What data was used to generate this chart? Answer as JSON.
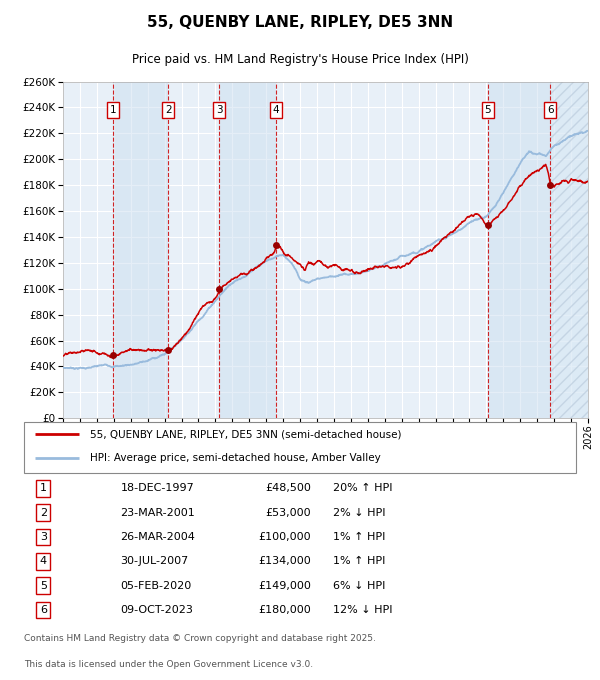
{
  "title": "55, QUENBY LANE, RIPLEY, DE5 3NN",
  "subtitle": "Price paid vs. HM Land Registry's House Price Index (HPI)",
  "legend_line1": "55, QUENBY LANE, RIPLEY, DE5 3NN (semi-detached house)",
  "legend_line2": "HPI: Average price, semi-detached house, Amber Valley",
  "footer1": "Contains HM Land Registry data © Crown copyright and database right 2025.",
  "footer2": "This data is licensed under the Open Government Licence v3.0.",
  "sale_color": "#cc0000",
  "hpi_color": "#99bbdd",
  "plot_bg": "#e8f0f8",
  "grid_color": "#ffffff",
  "vline_color": "#cc0000",
  "ylim": [
    0,
    260000
  ],
  "yticks": [
    0,
    20000,
    40000,
    60000,
    80000,
    100000,
    120000,
    140000,
    160000,
    180000,
    200000,
    220000,
    240000,
    260000
  ],
  "sales": [
    {
      "num": 1,
      "date": "18-DEC-1997",
      "price": 48500,
      "pct": "20%",
      "dir": "↑",
      "x_year": 1997.96
    },
    {
      "num": 2,
      "date": "23-MAR-2001",
      "price": 53000,
      "pct": "2%",
      "dir": "↓",
      "x_year": 2001.22
    },
    {
      "num": 3,
      "date": "26-MAR-2004",
      "price": 100000,
      "pct": "1%",
      "dir": "↑",
      "x_year": 2004.23
    },
    {
      "num": 4,
      "date": "30-JUL-2007",
      "price": 134000,
      "pct": "1%",
      "dir": "↑",
      "x_year": 2007.58
    },
    {
      "num": 5,
      "date": "05-FEB-2020",
      "price": 149000,
      "pct": "6%",
      "dir": "↓",
      "x_year": 2020.09
    },
    {
      "num": 6,
      "date": "09-OCT-2023",
      "price": 180000,
      "pct": "12%",
      "dir": "↓",
      "x_year": 2023.77
    }
  ],
  "xmin": 1995.0,
  "xmax": 2026.0,
  "hpi_keypoints": [
    [
      1995.0,
      39000
    ],
    [
      1997.0,
      40000
    ],
    [
      1998.5,
      41000
    ],
    [
      2000.0,
      45000
    ],
    [
      2001.0,
      50000
    ],
    [
      2002.0,
      62000
    ],
    [
      2003.0,
      78000
    ],
    [
      2004.0,
      95000
    ],
    [
      2005.0,
      110000
    ],
    [
      2006.0,
      118000
    ],
    [
      2007.0,
      125000
    ],
    [
      2007.6,
      128000
    ],
    [
      2008.0,
      130000
    ],
    [
      2008.5,
      125000
    ],
    [
      2009.0,
      112000
    ],
    [
      2009.5,
      110000
    ],
    [
      2010.0,
      113000
    ],
    [
      2011.0,
      116000
    ],
    [
      2012.0,
      117000
    ],
    [
      2013.0,
      119000
    ],
    [
      2014.0,
      121000
    ],
    [
      2015.0,
      126000
    ],
    [
      2016.0,
      132000
    ],
    [
      2017.0,
      138000
    ],
    [
      2018.0,
      145000
    ],
    [
      2019.0,
      152000
    ],
    [
      2020.0,
      157000
    ],
    [
      2020.5,
      165000
    ],
    [
      2021.0,
      175000
    ],
    [
      2021.5,
      188000
    ],
    [
      2022.0,
      200000
    ],
    [
      2022.5,
      207000
    ],
    [
      2023.0,
      205000
    ],
    [
      2023.5,
      202000
    ],
    [
      2024.0,
      210000
    ],
    [
      2024.5,
      215000
    ],
    [
      2025.0,
      220000
    ],
    [
      2026.0,
      222000
    ]
  ],
  "prop_keypoints": [
    [
      1995.0,
      48000
    ],
    [
      1996.0,
      48500
    ],
    [
      1996.5,
      50000
    ],
    [
      1997.0,
      49000
    ],
    [
      1997.5,
      50000
    ],
    [
      1997.96,
      48500
    ],
    [
      1998.5,
      53000
    ],
    [
      1999.0,
      55000
    ],
    [
      1999.5,
      57000
    ],
    [
      2000.0,
      58000
    ],
    [
      2000.5,
      57000
    ],
    [
      2001.22,
      53000
    ],
    [
      2001.5,
      55000
    ],
    [
      2002.0,
      62000
    ],
    [
      2002.5,
      72000
    ],
    [
      2003.0,
      82000
    ],
    [
      2003.5,
      90000
    ],
    [
      2004.0,
      95000
    ],
    [
      2004.23,
      100000
    ],
    [
      2004.5,
      105000
    ],
    [
      2005.0,
      113000
    ],
    [
      2005.5,
      118000
    ],
    [
      2006.0,
      120000
    ],
    [
      2006.5,
      123000
    ],
    [
      2007.0,
      128000
    ],
    [
      2007.58,
      134000
    ],
    [
      2007.8,
      136000
    ],
    [
      2008.0,
      131000
    ],
    [
      2008.5,
      126000
    ],
    [
      2009.0,
      122000
    ],
    [
      2009.3,
      115000
    ],
    [
      2009.5,
      122000
    ],
    [
      2009.8,
      118000
    ],
    [
      2010.0,
      120000
    ],
    [
      2010.5,
      116000
    ],
    [
      2011.0,
      118000
    ],
    [
      2011.5,
      116000
    ],
    [
      2012.0,
      117000
    ],
    [
      2012.5,
      116000
    ],
    [
      2013.0,
      118000
    ],
    [
      2013.5,
      119000
    ],
    [
      2014.0,
      120000
    ],
    [
      2014.5,
      122000
    ],
    [
      2015.0,
      124000
    ],
    [
      2015.5,
      128000
    ],
    [
      2016.0,
      132000
    ],
    [
      2016.5,
      135000
    ],
    [
      2017.0,
      138000
    ],
    [
      2017.5,
      142000
    ],
    [
      2018.0,
      146000
    ],
    [
      2018.5,
      150000
    ],
    [
      2019.0,
      154000
    ],
    [
      2019.5,
      157000
    ],
    [
      2020.09,
      149000
    ],
    [
      2020.5,
      153000
    ],
    [
      2021.0,
      160000
    ],
    [
      2021.5,
      168000
    ],
    [
      2022.0,
      175000
    ],
    [
      2022.5,
      183000
    ],
    [
      2023.0,
      190000
    ],
    [
      2023.5,
      195000
    ],
    [
      2023.77,
      180000
    ],
    [
      2024.0,
      178000
    ],
    [
      2024.5,
      182000
    ],
    [
      2025.0,
      185000
    ],
    [
      2025.5,
      183000
    ]
  ]
}
